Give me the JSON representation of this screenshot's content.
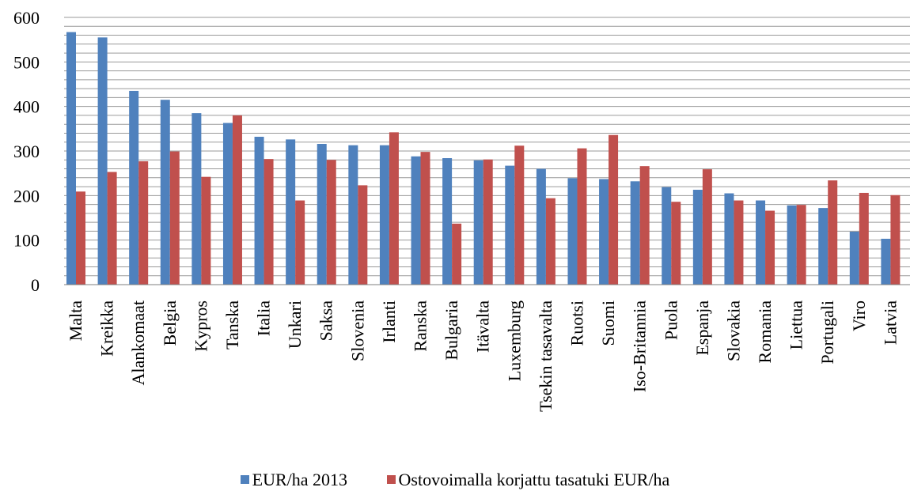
{
  "chart_data": {
    "type": "bar",
    "categories": [
      "Malta",
      "Kreikka",
      "Alankomaat",
      "Belgia",
      "Kypros",
      "Tanska",
      "Italia",
      "Unkari",
      "Saksa",
      "Slovenia",
      "Irlanti",
      "Ranska",
      "Bulgaria",
      "Itävalta",
      "Luxemburg",
      "Tsekin tasavalta",
      "Ruotsi",
      "Suomi",
      "Iso-Britannia",
      "Puola",
      "Espanja",
      "Slovakia",
      "Romania",
      "Liettua",
      "Portugali",
      "Viro",
      "Latvia"
    ],
    "series": [
      {
        "name": "EUR/ha 2013",
        "color": "#4F81BD",
        "values": [
          567,
          555,
          435,
          415,
          385,
          363,
          332,
          326,
          316,
          313,
          313,
          288,
          284,
          279,
          267,
          260,
          239,
          237,
          232,
          219,
          213,
          205,
          189,
          178,
          172,
          119,
          103
        ]
      },
      {
        "name": "Ostovoimalla korjattu tasatuki EUR/ha",
        "color": "#C0504D",
        "values": [
          209,
          253,
          277,
          299,
          242,
          380,
          282,
          189,
          280,
          223,
          342,
          298,
          137,
          281,
          312,
          194,
          306,
          336,
          266,
          186,
          259,
          189,
          166,
          179,
          234,
          206,
          201
        ]
      }
    ],
    "ylim": [
      0,
      600
    ],
    "yticks": [
      "0",
      "100",
      "200",
      "300",
      "400",
      "500",
      "600"
    ],
    "grid": true,
    "legend_position": "bottom",
    "title": "",
    "xlabel": "",
    "ylabel": ""
  }
}
